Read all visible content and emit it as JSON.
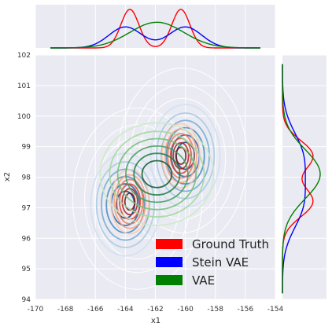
{
  "chart_data": {
    "type": "kde-jointplot",
    "xlabel": "x1",
    "ylabel": "x2",
    "xlim": [
      -170,
      -154
    ],
    "ylim": [
      94,
      102
    ],
    "x_ticks": [
      "-170",
      "-168",
      "-166",
      "-164",
      "-162",
      "-160",
      "-158",
      "-156",
      "-154"
    ],
    "y_ticks": [
      "94",
      "95",
      "96",
      "97",
      "98",
      "99",
      "100",
      "101",
      "102"
    ],
    "grid": true,
    "legend_position": "lower-right",
    "series": [
      {
        "name": "Ground Truth",
        "color": "#ff0000",
        "contour_palette": "reds",
        "components": [
          {
            "mx": -163.7,
            "my": 97.2,
            "sx": 0.6,
            "sy": 0.5,
            "w": 0.5
          },
          {
            "mx": -160.3,
            "my": 98.7,
            "sx": 0.6,
            "sy": 0.5,
            "w": 0.5
          }
        ]
      },
      {
        "name": "Stein VAE",
        "color": "#0000ff",
        "contour_palette": "blues",
        "components": [
          {
            "mx": -164.0,
            "my": 97.1,
            "sx": 1.1,
            "sy": 0.8,
            "w": 0.5
          },
          {
            "mx": -160.0,
            "my": 98.7,
            "sx": 1.1,
            "sy": 0.8,
            "w": 0.5
          }
        ]
      },
      {
        "name": "VAE",
        "color": "#008000",
        "contour_palette": "greens",
        "components": [
          {
            "mx": -161.9,
            "my": 98.1,
            "sx": 1.8,
            "sy": 0.8,
            "w": 1.0
          }
        ]
      }
    ],
    "kde_contour_lines": {
      "color": "#ffffff",
      "components": [
        {
          "mx": -163.2,
          "my": 97.3,
          "sx": 1.6,
          "sy": 1.1,
          "w": 0.5
        },
        {
          "mx": -160.2,
          "my": 98.6,
          "sx": 1.6,
          "sy": 1.1,
          "w": 0.5
        }
      ]
    }
  }
}
